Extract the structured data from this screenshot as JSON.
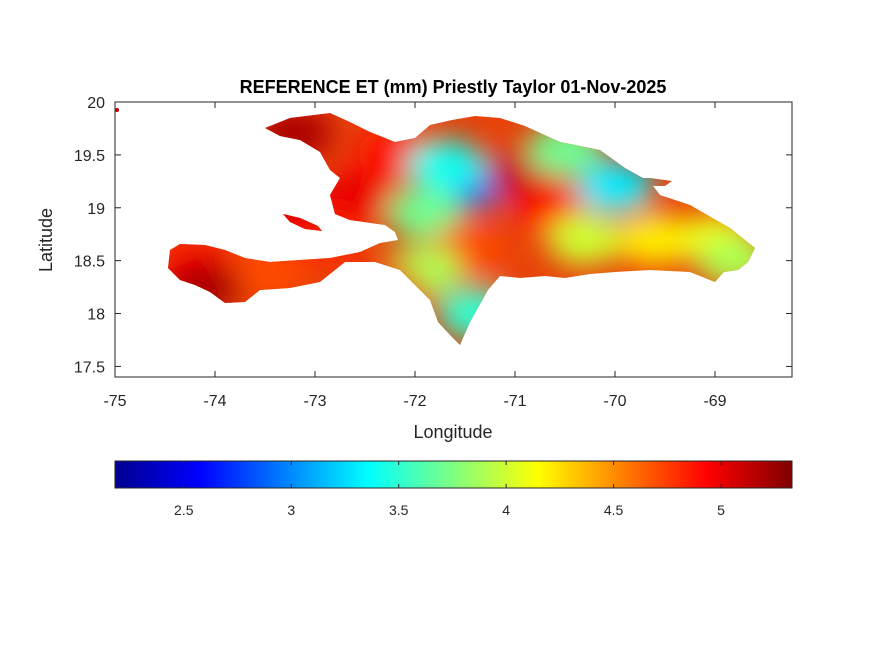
{
  "chart_data": {
    "type": "heatmap",
    "title": "REFERENCE ET (mm) Priestly Taylor 01-Nov-2025",
    "xlabel": "Longitude",
    "ylabel": "Latitude",
    "xlim": [
      -75,
      -68.23
    ],
    "ylim": [
      17.4,
      20
    ],
    "xticks": [
      -75,
      -74,
      -73,
      -72,
      -71,
      -70,
      -69
    ],
    "xtick_labels": [
      "-75",
      "-74",
      "-73",
      "-72",
      "-71",
      "-70",
      "-69"
    ],
    "yticks": [
      17.5,
      18,
      18.5,
      19,
      19.5,
      20
    ],
    "ytick_labels": [
      "17.5",
      "18",
      "18.5",
      "19",
      "19.5",
      "20"
    ],
    "colorbar": {
      "colormap": "jet",
      "orientation": "horizontal",
      "placement": "below",
      "range": [
        2.18,
        5.33
      ],
      "ticks": [
        2.5,
        3,
        3.5,
        4,
        4.5,
        5
      ],
      "tick_labels": [
        "2.5",
        "3",
        "3.5",
        "4",
        "4.5",
        "5"
      ]
    },
    "regions": [
      {
        "lon": -72.6,
        "lat": 19.1,
        "value": 5.0
      },
      {
        "lon": -72.2,
        "lat": 19.5,
        "value": 4.9
      },
      {
        "lon": -73.2,
        "lat": 19.7,
        "value": 5.2
      },
      {
        "lon": -72.9,
        "lat": 18.7,
        "value": 4.8
      },
      {
        "lon": -71.4,
        "lat": 19.25,
        "value": 2.9
      },
      {
        "lon": -71.7,
        "lat": 19.4,
        "value": 3.4
      },
      {
        "lon": -70.9,
        "lat": 19.3,
        "value": 5.1
      },
      {
        "lon": -70.6,
        "lat": 19.0,
        "value": 4.9
      },
      {
        "lon": -71.9,
        "lat": 18.95,
        "value": 3.7
      },
      {
        "lon": -71.5,
        "lat": 18.6,
        "value": 4.7
      },
      {
        "lon": -71.9,
        "lat": 18.4,
        "value": 3.9
      },
      {
        "lon": -71.4,
        "lat": 18.0,
        "value": 3.5
      },
      {
        "lon": -70.3,
        "lat": 18.7,
        "value": 4.0
      },
      {
        "lon": -70.0,
        "lat": 19.2,
        "value": 3.3
      },
      {
        "lon": -70.5,
        "lat": 19.55,
        "value": 3.7
      },
      {
        "lon": -69.6,
        "lat": 18.7,
        "value": 4.2
      },
      {
        "lon": -69.0,
        "lat": 18.7,
        "value": 4.1
      },
      {
        "lon": -68.8,
        "lat": 18.5,
        "value": 3.9
      },
      {
        "lon": -74.2,
        "lat": 18.45,
        "value": 4.9
      },
      {
        "lon": -73.5,
        "lat": 18.4,
        "value": 4.7
      },
      {
        "lon": -74.1,
        "lat": 18.25,
        "value": 5.2
      },
      {
        "lon": -73.3,
        "lat": 18.9,
        "value": 5.0
      },
      {
        "lon": -72.3,
        "lat": 18.2,
        "value": 5.0
      }
    ]
  }
}
